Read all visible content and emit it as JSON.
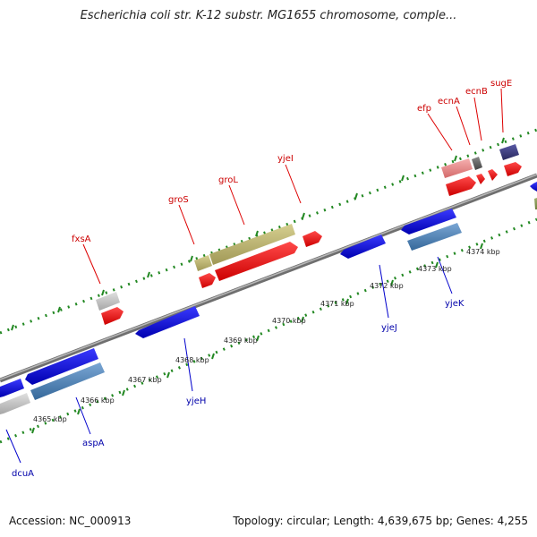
{
  "title": "Escherichia coli str. K-12 substr. MG1655 chromosome, comple...",
  "footer": {
    "accession": "Accession: NC_000913",
    "summary": "Topology: circular; Length: 4,639,675 bp; Genes: 4,255"
  },
  "scale_labels": [
    "4365 kbp",
    "4366 kbp",
    "4367 kbp",
    "4368 kbp",
    "4369 kbp",
    "4370 kbp",
    "4371 kbp",
    "4372 kbp",
    "4373 kbp",
    "4374 kbp"
  ],
  "genes_top": [
    "fxsA",
    "groS",
    "groL",
    "yjeI",
    "efp",
    "ecnA",
    "ecnB",
    "sugE"
  ],
  "genes_bottom": [
    "dcuA",
    "aspA",
    "yjeH",
    "yjeJ",
    "yjeK"
  ],
  "colors": {
    "forward_cds": "#ee0000",
    "reverse_cds": "#1010dd",
    "forward_gene_alt": "#b8b070",
    "reverse_gene_alt": "#4a7fb0",
    "unknown": "#bbbbbb",
    "pink": "#e88a8a",
    "purple": "#3a3a80",
    "backbone": "#888888",
    "forward_label": "#cc0000",
    "reverse_label": "#0000aa",
    "dots": "#228822"
  }
}
